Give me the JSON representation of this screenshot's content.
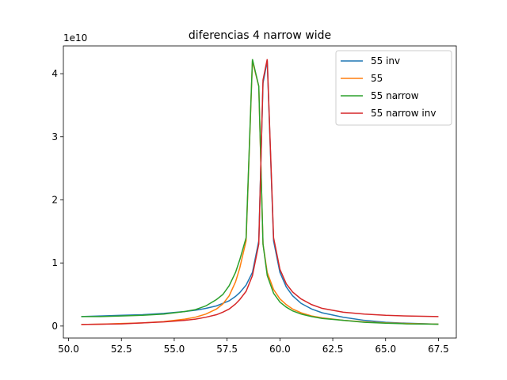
{
  "chart_data": {
    "type": "line",
    "title": "diferencias 4 narrow wide",
    "y_offset_label": "1e10",
    "x": [
      50.6,
      51.5,
      52.5,
      53.5,
      54.5,
      55.5,
      56.0,
      56.5,
      57.0,
      57.3,
      57.6,
      57.9,
      58.1,
      58.4,
      58.7,
      59.0,
      59.2,
      59.4,
      59.7,
      60.0,
      60.3,
      60.6,
      61.0,
      61.5,
      62.0,
      63.0,
      64.0,
      65.0,
      66.0,
      67.5
    ],
    "series": [
      {
        "name": "55 inv",
        "color": "#1f77b4",
        "values": [
          0.15,
          0.16,
          0.17,
          0.18,
          0.2,
          0.23,
          0.25,
          0.28,
          0.32,
          0.36,
          0.4,
          0.47,
          0.53,
          0.65,
          0.85,
          1.35,
          3.85,
          4.2,
          1.35,
          0.85,
          0.62,
          0.48,
          0.36,
          0.27,
          0.21,
          0.14,
          0.09,
          0.06,
          0.045,
          0.03
        ]
      },
      {
        "name": "55",
        "color": "#ff7f0e",
        "values": [
          0.025,
          0.03,
          0.04,
          0.05,
          0.07,
          0.11,
          0.14,
          0.19,
          0.27,
          0.35,
          0.48,
          0.7,
          0.92,
          1.35,
          4.2,
          3.8,
          1.3,
          0.85,
          0.58,
          0.43,
          0.34,
          0.27,
          0.21,
          0.16,
          0.13,
          0.09,
          0.065,
          0.05,
          0.04,
          0.03
        ]
      },
      {
        "name": "55 narrow",
        "color": "#2ca02c",
        "values": [
          0.15,
          0.15,
          0.16,
          0.17,
          0.19,
          0.23,
          0.26,
          0.32,
          0.42,
          0.5,
          0.64,
          0.85,
          1.05,
          1.4,
          4.23,
          3.8,
          1.3,
          0.8,
          0.52,
          0.38,
          0.3,
          0.24,
          0.19,
          0.15,
          0.12,
          0.09,
          0.06,
          0.045,
          0.035,
          0.03
        ]
      },
      {
        "name": "55 narrow inv",
        "color": "#d62728",
        "values": [
          0.025,
          0.03,
          0.035,
          0.05,
          0.065,
          0.09,
          0.11,
          0.14,
          0.18,
          0.22,
          0.27,
          0.35,
          0.42,
          0.55,
          0.8,
          1.3,
          3.9,
          4.23,
          1.4,
          0.9,
          0.67,
          0.54,
          0.43,
          0.34,
          0.28,
          0.22,
          0.19,
          0.17,
          0.16,
          0.15
        ]
      }
    ],
    "xlim": [
      49.755,
      68.345
    ],
    "xticks": [
      {
        "value": 50,
        "label": "50.0"
      },
      52.5,
      {
        "value": 55,
        "label": "55.0"
      },
      57.5,
      {
        "value": 60,
        "label": "60.0"
      },
      62.5,
      {
        "value": 65,
        "label": "65.0"
      },
      67.5
    ],
    "ylim": [
      -0.19,
      4.44
    ],
    "yticks": [
      0,
      1,
      2,
      3,
      4
    ],
    "legend": "upper right"
  }
}
